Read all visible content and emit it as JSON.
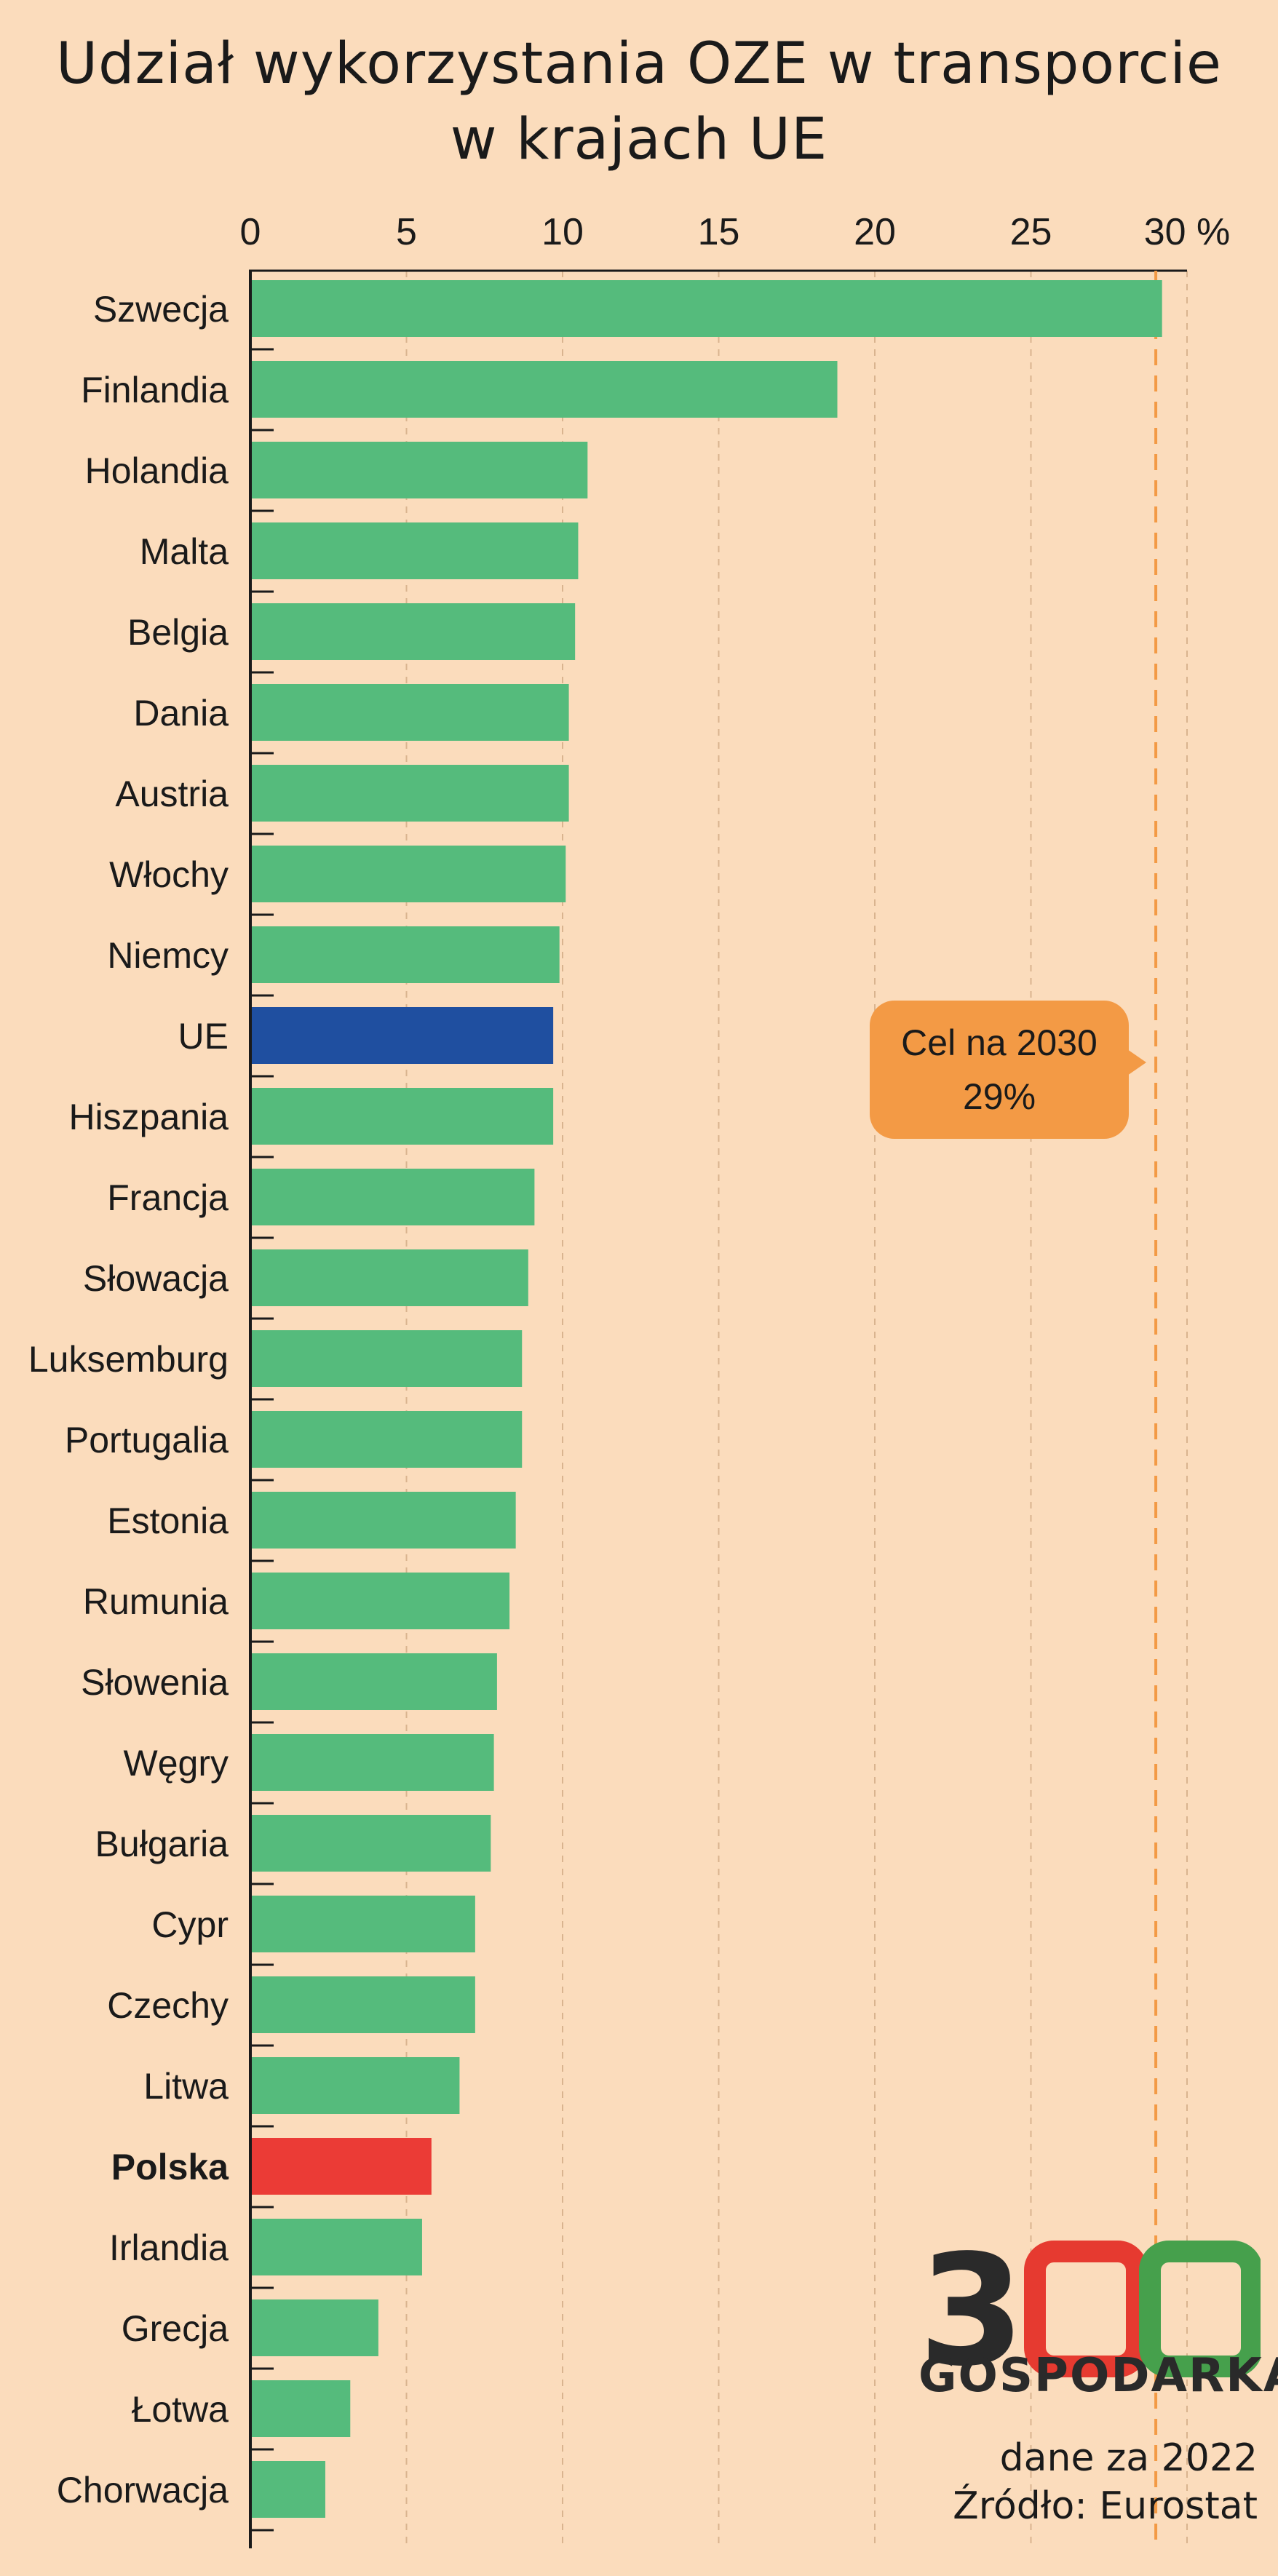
{
  "title": {
    "line1": "Udział wykorzystania OZE w transporcie",
    "line2": "w krajach UE"
  },
  "colors": {
    "background": "#fbdcbc",
    "bar_default": "#55bb7c",
    "bar_eu": "#1f4fa0",
    "bar_poland": "#eb3b36",
    "target_line": "#f39a45",
    "callout": "#f39a45"
  },
  "chart_data": {
    "type": "bar",
    "orientation": "horizontal",
    "x_ticks": [
      "0",
      "5",
      "10",
      "15",
      "20",
      "25",
      "30 %"
    ],
    "xlim": [
      0,
      30
    ],
    "grid": true,
    "categories": [
      "Szwecja",
      "Finlandia",
      "Holandia",
      "Malta",
      "Belgia",
      "Dania",
      "Austria",
      "Włochy",
      "Niemcy",
      "UE",
      "Hiszpania",
      "Francja",
      "Słowacja",
      "Luksemburg",
      "Portugalia",
      "Estonia",
      "Rumunia",
      "Słowenia",
      "Węgry",
      "Bułgaria",
      "Cypr",
      "Czechy",
      "Litwa",
      "Polska",
      "Irlandia",
      "Grecja",
      "Łotwa",
      "Chorwacja"
    ],
    "values": [
      29.2,
      18.8,
      10.8,
      10.5,
      10.4,
      10.2,
      10.2,
      10.1,
      9.9,
      9.7,
      9.7,
      9.1,
      8.9,
      8.7,
      8.7,
      8.5,
      8.3,
      7.9,
      7.8,
      7.7,
      7.2,
      7.2,
      6.7,
      5.8,
      5.5,
      4.1,
      3.2,
      2.4
    ],
    "highlight": {
      "UE": "bar_eu",
      "Polska": "bar_poland"
    },
    "bold_categories": [
      "Polska"
    ],
    "target": {
      "value": 29,
      "label_line1": "Cel na 2030",
      "label_line2": "29%"
    }
  },
  "logo": {
    "digits": [
      "3",
      "0",
      "0"
    ],
    "wordmark": "GOSPODARKA"
  },
  "source": {
    "line1": "dane za 2022",
    "line2": "Źródło: Eurostat"
  }
}
